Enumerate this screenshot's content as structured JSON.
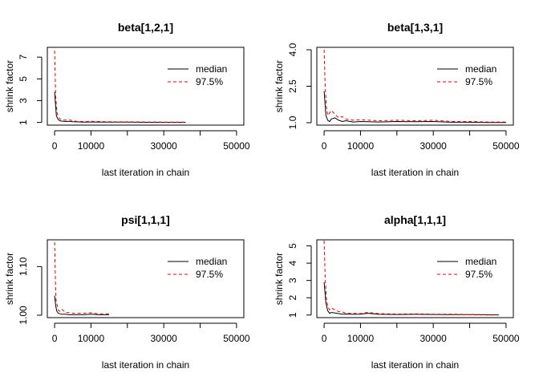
{
  "chart_data": [
    {
      "type": "line",
      "title": "beta[1,2,1]",
      "xlabel": "last iteration in chain",
      "ylabel": "shrink factor",
      "xlim": [
        -2000,
        52000
      ],
      "ylim": [
        0.75,
        7.9
      ],
      "xticks": [
        0,
        10000,
        20000,
        30000,
        40000,
        50000
      ],
      "xtick_labels": [
        "0",
        "10000",
        "",
        "30000",
        "",
        "50000"
      ],
      "yticks": [
        1,
        3,
        5,
        7
      ],
      "ytick_labels": [
        "1",
        "3",
        "5",
        "7"
      ],
      "legend": [
        "median",
        "97.5%"
      ],
      "legend_position": "top-right",
      "series": [
        {
          "name": "median",
          "color": "#000000",
          "dash": "solid",
          "x": [
            0,
            500,
            1000,
            1500,
            2000,
            3000,
            4000,
            5000,
            6000,
            8000,
            10000,
            15000,
            20000,
            25000,
            30000,
            36000
          ],
          "y": [
            3.8,
            1.6,
            1.25,
            1.15,
            1.12,
            1.08,
            1.1,
            1.07,
            1.05,
            1.03,
            1.04,
            1.02,
            1.02,
            1.01,
            1.01,
            1.01
          ]
        },
        {
          "name": "97.5%",
          "color": "#e8000b",
          "dash": "dashed",
          "x": [
            0,
            300,
            600,
            1000,
            1500,
            2000,
            3000,
            4000,
            5000,
            6000,
            8000,
            10000,
            15000,
            20000,
            25000,
            30000,
            36000
          ],
          "y": [
            7.6,
            3.4,
            2.0,
            1.5,
            1.3,
            1.25,
            1.2,
            1.25,
            1.15,
            1.1,
            1.08,
            1.1,
            1.06,
            1.05,
            1.04,
            1.03,
            1.03
          ]
        }
      ]
    },
    {
      "type": "line",
      "title": "beta[1,3,1]",
      "xlabel": "last iteration in chain",
      "ylabel": "shrink factor",
      "xlim": [
        -2000,
        52000
      ],
      "ylim": [
        0.9,
        4.1
      ],
      "xticks": [
        0,
        10000,
        20000,
        30000,
        40000,
        50000
      ],
      "xtick_labels": [
        "0",
        "10000",
        "",
        "30000",
        "",
        "50000"
      ],
      "yticks": [
        1.0,
        2.5,
        4.0
      ],
      "ytick_labels": [
        "1.0",
        "2.5",
        "4.0"
      ],
      "legend": [
        "median",
        "97.5%"
      ],
      "legend_position": "top-right",
      "series": [
        {
          "name": "median",
          "color": "#000000",
          "dash": "solid",
          "x": [
            0,
            500,
            1000,
            1500,
            2000,
            3000,
            4000,
            5000,
            6000,
            8000,
            10000,
            15000,
            20000,
            25000,
            30000,
            35000,
            40000,
            45000,
            50000
          ],
          "y": [
            2.3,
            1.3,
            1.1,
            1.05,
            1.15,
            1.2,
            1.1,
            1.05,
            1.08,
            1.03,
            1.05,
            1.03,
            1.05,
            1.04,
            1.05,
            1.02,
            1.02,
            1.01,
            1.01
          ]
        },
        {
          "name": "97.5%",
          "color": "#e8000b",
          "dash": "dashed",
          "x": [
            0,
            300,
            600,
            1000,
            1500,
            2000,
            3000,
            4000,
            5000,
            6000,
            8000,
            10000,
            15000,
            20000,
            25000,
            30000,
            35000,
            40000,
            45000,
            50000
          ],
          "y": [
            4.0,
            2.5,
            1.7,
            1.3,
            1.4,
            1.5,
            1.35,
            1.2,
            1.25,
            1.15,
            1.1,
            1.12,
            1.08,
            1.1,
            1.08,
            1.1,
            1.05,
            1.05,
            1.03,
            1.03
          ]
        }
      ]
    },
    {
      "type": "line",
      "title": "psi[1,1,1]",
      "xlabel": "last iteration in chain",
      "ylabel": "shrink factor",
      "xlim": [
        -2000,
        52000
      ],
      "ylim": [
        0.995,
        1.155
      ],
      "xticks": [
        0,
        10000,
        20000,
        30000,
        40000,
        50000
      ],
      "xtick_labels": [
        "0",
        "10000",
        "",
        "30000",
        "",
        "50000"
      ],
      "yticks": [
        1.0,
        1.1
      ],
      "ytick_labels": [
        "1.00",
        "1.10"
      ],
      "legend": [
        "median",
        "97.5%"
      ],
      "legend_position": "top-right",
      "series": [
        {
          "name": "median",
          "color": "#000000",
          "dash": "solid",
          "x": [
            0,
            300,
            600,
            1000,
            1500,
            2000,
            3000,
            4000,
            5000,
            8000,
            10000,
            12000,
            15000
          ],
          "y": [
            1.04,
            1.02,
            1.008,
            1.004,
            1.003,
            1.002,
            1.002,
            1.001,
            1.001,
            1.001,
            1.002,
            1.001,
            1.001
          ]
        },
        {
          "name": "97.5%",
          "color": "#e8000b",
          "dash": "dashed",
          "x": [
            0,
            200,
            400,
            700,
            1000,
            1500,
            2000,
            3000,
            4000,
            5000,
            8000,
            10000,
            12000,
            15000
          ],
          "y": [
            1.15,
            1.08,
            1.03,
            1.02,
            1.01,
            1.008,
            1.012,
            1.006,
            1.005,
            1.004,
            1.004,
            1.005,
            1.003,
            1.003
          ]
        }
      ]
    },
    {
      "type": "line",
      "title": "alpha[1,1,1]",
      "xlabel": "last iteration in chain",
      "ylabel": "shrink factor",
      "xlim": [
        -2000,
        52000
      ],
      "ylim": [
        0.85,
        5.35
      ],
      "xticks": [
        0,
        10000,
        20000,
        30000,
        40000,
        50000
      ],
      "xtick_labels": [
        "0",
        "10000",
        "",
        "30000",
        "",
        "50000"
      ],
      "yticks": [
        1,
        2,
        3,
        4,
        5
      ],
      "ytick_labels": [
        "1",
        "2",
        "3",
        "4",
        "5"
      ],
      "legend": [
        "median",
        "97.5%"
      ],
      "legend_position": "top-right",
      "series": [
        {
          "name": "median",
          "color": "#000000",
          "dash": "solid",
          "x": [
            0,
            500,
            1000,
            1500,
            2000,
            3000,
            4000,
            5000,
            6000,
            8000,
            10000,
            12000,
            15000,
            20000,
            25000,
            30000,
            35000,
            40000,
            45000,
            48000
          ],
          "y": [
            2.9,
            1.7,
            1.25,
            1.1,
            1.15,
            1.12,
            1.08,
            1.05,
            1.06,
            1.04,
            1.05,
            1.1,
            1.04,
            1.03,
            1.04,
            1.03,
            1.02,
            1.02,
            1.01,
            1.01
          ]
        },
        {
          "name": "97.5%",
          "color": "#e8000b",
          "dash": "dashed",
          "x": [
            0,
            300,
            600,
            1000,
            1500,
            2000,
            3000,
            4000,
            5000,
            6000,
            8000,
            10000,
            12000,
            15000,
            20000,
            25000,
            30000,
            35000,
            40000,
            45000,
            48000
          ],
          "y": [
            5.3,
            3.2,
            2.0,
            1.5,
            1.3,
            1.4,
            1.3,
            1.2,
            1.18,
            1.1,
            1.1,
            1.08,
            1.15,
            1.08,
            1.06,
            1.07,
            1.05,
            1.05,
            1.03,
            1.02,
            1.02
          ]
        }
      ]
    }
  ]
}
